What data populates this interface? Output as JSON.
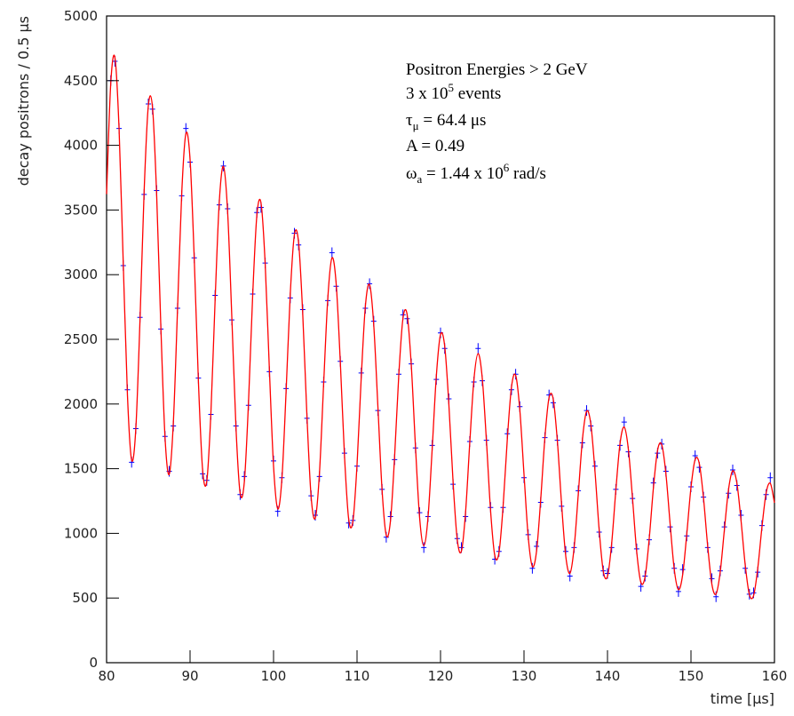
{
  "chart_data": {
    "type": "scatter-fit",
    "xlabel": "time [μs]",
    "ylabel": "decay positrons / 0.5 μs",
    "xlim": [
      80,
      160
    ],
    "xticks": [
      80,
      90,
      100,
      110,
      120,
      130,
      140,
      150,
      160
    ],
    "ylim": [
      0,
      5000
    ],
    "yticks": [
      0,
      500,
      1000,
      1500,
      2000,
      2500,
      3000,
      3500,
      4000,
      4500,
      5000
    ],
    "annotations": [
      [
        "Positron Energies > 2 GeV"
      ],
      [
        "3 x 10",
        {
          "sup": "5"
        },
        " events"
      ],
      [
        "τ",
        {
          "sub": "μ"
        },
        " =  64.4 μs"
      ],
      [
        "A  =  0.49"
      ],
      [
        "ω",
        {
          "sub": "a"
        },
        " =  1.44 x 10",
        {
          "sup": "6"
        },
        " rad/s"
      ]
    ],
    "series": [
      {
        "style": "points",
        "color": "#0000ff",
        "x": [
          80.5,
          81,
          81.5,
          82,
          82.5,
          83,
          83.5,
          84,
          84.5,
          85,
          85.5,
          86,
          86.5,
          87,
          87.5,
          88,
          88.5,
          89,
          89.5,
          90,
          90.5,
          91,
          91.5,
          92,
          92.5,
          93,
          93.5,
          94,
          94.5,
          95,
          95.5,
          96,
          96.5,
          97,
          97.5,
          98,
          98.5,
          99,
          99.5,
          100,
          100.5,
          101,
          101.5,
          102,
          102.5,
          103,
          103.5,
          104,
          104.5,
          105,
          105.5,
          106,
          106.5,
          107,
          107.5,
          108,
          108.5,
          109,
          109.5,
          110,
          110.5,
          111,
          111.5,
          112,
          112.5,
          113,
          113.5,
          114,
          114.5,
          115,
          115.5,
          116,
          116.5,
          117,
          117.5,
          118,
          118.5,
          119,
          119.5,
          120,
          120.5,
          121,
          121.5,
          122,
          122.5,
          123,
          123.5,
          124,
          124.5,
          125,
          125.5,
          126,
          126.5,
          127,
          127.5,
          128,
          128.5,
          129,
          129.5,
          130,
          130.5,
          131,
          131.5,
          132,
          132.5,
          133,
          133.5,
          134,
          134.5,
          135,
          135.5,
          136,
          136.5,
          137,
          137.5,
          138,
          138.5,
          139,
          139.5,
          140,
          140.5,
          141,
          141.5,
          142,
          142.5,
          143,
          143.5,
          144,
          144.5,
          145,
          145.5,
          146,
          146.5,
          147,
          147.5,
          148,
          148.5,
          149,
          149.5,
          150,
          150.5,
          151,
          151.5,
          152,
          152.5,
          153,
          153.5,
          154,
          154.5,
          155,
          155.5,
          156,
          156.5,
          157,
          157.5,
          158,
          158.5,
          159,
          159.5
        ],
        "values": [
          4500,
          4650,
          4130,
          3070,
          2110,
          1550,
          1810,
          2670,
          3620,
          4320,
          4280,
          3650,
          2580,
          1750,
          1480,
          1830,
          2740,
          3610,
          4130,
          3870,
          3130,
          2200,
          1460,
          1410,
          1920,
          2840,
          3540,
          3840,
          3510,
          2650,
          1830,
          1300,
          1440,
          1990,
          2850,
          3480,
          3520,
          3090,
          2250,
          1560,
          1170,
          1430,
          2120,
          2820,
          3320,
          3230,
          2730,
          1890,
          1290,
          1140,
          1440,
          2170,
          2800,
          3170,
          2910,
          2330,
          1620,
          1080,
          1100,
          1520,
          2240,
          2740,
          2930,
          2640,
          1950,
          1340,
          970,
          1130,
          1570,
          2230,
          2690,
          2660,
          2310,
          1660,
          1160,
          890,
          1130,
          1680,
          2190,
          2550,
          2430,
          2040,
          1380,
          960,
          890,
          1130,
          1710,
          2170,
          2430,
          2180,
          1720,
          1200,
          800,
          860,
          1200,
          1770,
          2110,
          2230,
          1980,
          1430,
          990,
          730,
          900,
          1240,
          1740,
          2070,
          2010,
          1720,
          1210,
          860,
          670,
          890,
          1330,
          1700,
          1950,
          1830,
          1520,
          1010,
          710,
          690,
          890,
          1340,
          1680,
          1860,
          1630,
          1270,
          880,
          590,
          670,
          950,
          1390,
          1620,
          1690,
          1480,
          1050,
          730,
          550,
          720,
          980,
          1360,
          1600,
          1510,
          1280,
          890,
          650,
          510,
          710,
          1050,
          1310,
          1490,
          1370,
          1140,
          730,
          530,
          540,
          700,
          1060,
          1300,
          1430
        ]
      },
      {
        "style": "line",
        "color": "#ff0000",
        "x": [
          80,
          80.5,
          81,
          81.5,
          82,
          82.5,
          83,
          83.5,
          84,
          84.5,
          85,
          85.5,
          86,
          86.5,
          87,
          87.5,
          88,
          88.5,
          89,
          89.5,
          90,
          90.5,
          91,
          91.5,
          92,
          92.5,
          93,
          93.5,
          94,
          94.5,
          95,
          95.5,
          96,
          96.5,
          97,
          97.5,
          98,
          98.5,
          99,
          99.5,
          100,
          100.5,
          101,
          101.5,
          102,
          102.5,
          103,
          103.5,
          104,
          104.5,
          105,
          105.5,
          106,
          106.5,
          107,
          107.5,
          108,
          108.5,
          109,
          109.5,
          110,
          110.5,
          111,
          111.5,
          112,
          112.5,
          113,
          113.5,
          114,
          114.5,
          115,
          115.5,
          116,
          116.5,
          117,
          117.5,
          118,
          118.5,
          119,
          119.5,
          120,
          120.5,
          121,
          121.5,
          122,
          122.5,
          123,
          123.5,
          124,
          124.5,
          125,
          125.5,
          126,
          126.5,
          127,
          127.5,
          128,
          128.5,
          129,
          129.5,
          130,
          130.5,
          131,
          131.5,
          132,
          132.5,
          133,
          133.5,
          134,
          134.5,
          135,
          135.5,
          136,
          136.5,
          137,
          137.5,
          138,
          138.5,
          139,
          139.5,
          140,
          140.5,
          141,
          141.5,
          142,
          142.5,
          143,
          143.5,
          144,
          144.5,
          145,
          145.5,
          146,
          146.5,
          147,
          147.5,
          148,
          148.5,
          149,
          149.5,
          150,
          150.5,
          151,
          151.5,
          152,
          152.5,
          153,
          153.5,
          154,
          154.5,
          155,
          155.5,
          156,
          156.5,
          157,
          157.5,
          158,
          158.5,
          159,
          159.5,
          160
        ],
        "values": [
          3623,
          4479,
          4678,
          4120,
          3083,
          2068,
          1567,
          1806,
          2643,
          3648,
          4305,
          4294,
          3612,
          2598,
          1743,
          1456,
          1860,
          2734,
          3628,
          4090,
          3891,
          3126,
          2174,
          1494,
          1402,
          1937,
          2802,
          3563,
          3837,
          3484,
          2676,
          1816,
          1310,
          1397,
          2013,
          2840,
          3457,
          3553,
          3081,
          2269,
          1520,
          1190,
          1421,
          2091,
          2848,
          3310,
          3248,
          2690,
          1907,
          1284,
          1118,
          1467,
          2155,
          2819,
          3130,
          2931,
          2320,
          1596,
          1110,
          1091,
          1530,
          2200,
          2757,
          2923,
          2612,
          1979,
          1333,
          986,
          1093,
          1594,
          2222,
          2661,
          2692,
          2297,
          1670,
          1118,
          905,
          1122,
          1651,
          2218,
          2537,
          2448,
          1996,
          1402,
          954,
          862,
          1164,
          1697,
          2188,
          2390,
          2200,
          1715,
          1171,
          829,
          850,
          1213,
          1727,
          2131,
          2222,
          1953,
          1457,
          977,
          744,
          861,
          1261,
          1737,
          2049,
          2038,
          1711,
          1227,
          824,
          691,
          887,
          1302,
          1727,
          1944,
          1846,
          1481,
          1029,
          706,
          668,
          922,
          1333,
          1694,
          1822,
          1651,
          1268,
          858,
          621,
          664,
          960,
          1351,
          1643,
          1685,
          1459,
          1075,
          720,
          565,
          678,
          997,
          1354,
          1571,
          1539,
          1273,
          903,
          608,
          531,
          700,
          1026,
          1340,
          1484,
          1388,
          1096,
          754,
          526,
          519,
          730,
          1047,
          1311,
          1387,
          1236
        ]
      }
    ]
  }
}
